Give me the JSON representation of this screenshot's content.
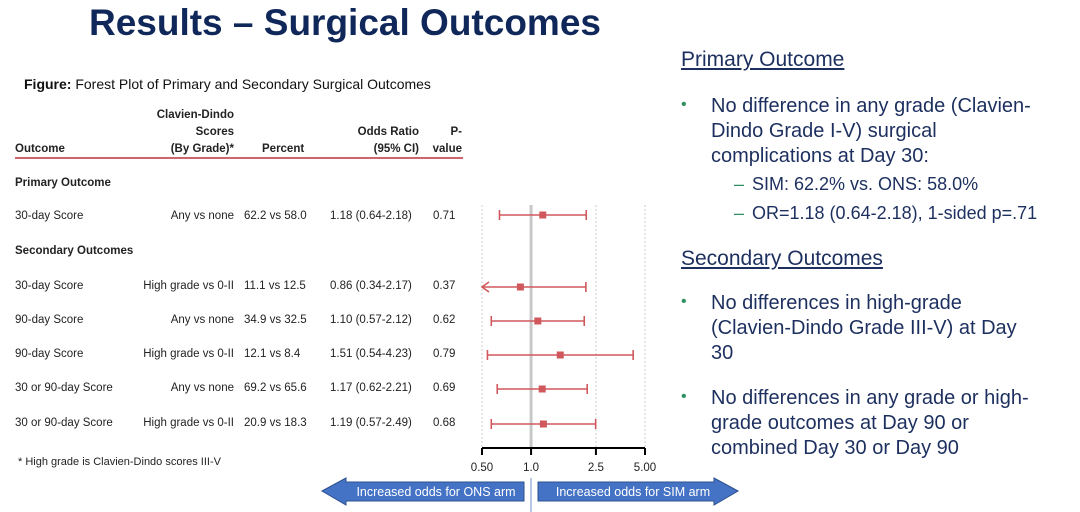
{
  "title": "Results – Surgical Outcomes",
  "caption": {
    "label": "Figure:",
    "text": " Forest Plot of Primary and Secondary Surgical Outcomes"
  },
  "table": {
    "headers": {
      "outcome": "Outcome",
      "score_l1": "Clavien-Dindo",
      "score_l2": "Scores",
      "score_l3": "(By Grade)*",
      "percent": "Percent",
      "or_l1": "Odds Ratio",
      "or_l2": "(95% CI)",
      "p_l1": "P-",
      "p_l2": "value"
    },
    "section_primary": "Primary Outcome",
    "section_secondary": "Secondary Outcomes",
    "rows": [
      {
        "outcome": "30-day Score",
        "score": "Any vs none",
        "percent": "62.2 vs 58.0",
        "or": "1.18 (0.64-2.18)",
        "p": "0.71"
      },
      {
        "outcome": "30-day Score",
        "score": "High grade vs 0-II",
        "percent": "11.1 vs 12.5",
        "or": "0.86 (0.34-2.17)",
        "p": "0.37"
      },
      {
        "outcome": "90-day Score",
        "score": "Any vs none",
        "percent": "34.9 vs 32.5",
        "or": "1.10 (0.57-2.12)",
        "p": "0.62"
      },
      {
        "outcome": "90-day Score",
        "score": "High grade vs 0-II",
        "percent": "12.1 vs 8.4",
        "or": "1.51 (0.54-4.23)",
        "p": "0.79"
      },
      {
        "outcome": "30 or 90-day Score",
        "score": "Any vs none",
        "percent": "69.2 vs 65.6",
        "or": "1.17 (0.62-2.21)",
        "p": "0.69"
      },
      {
        "outcome": "30 or 90-day Score",
        "score": "High grade vs 0-II",
        "percent": "20.9 vs 18.3",
        "or": "1.19 (0.57-2.49)",
        "p": "0.68"
      }
    ],
    "footnote": "* High grade is Clavien-Dindo  scores III-V"
  },
  "chart_data": {
    "type": "forest",
    "x_scale": "log",
    "xlim": [
      0.5,
      5.0
    ],
    "x_ticks": [
      0.5,
      1.0,
      2.5,
      5.0
    ],
    "x_tick_labels": [
      "0.50",
      "1.0",
      "2.5",
      "5.00"
    ],
    "reference_line": 1.0,
    "grid": "dotted vertical at ticks",
    "points": [
      {
        "or": 1.18,
        "lo": 0.64,
        "hi": 2.18
      },
      {
        "or": 0.86,
        "lo": 0.34,
        "hi": 2.17
      },
      {
        "or": 1.1,
        "lo": 0.57,
        "hi": 2.12
      },
      {
        "or": 1.51,
        "lo": 0.54,
        "hi": 4.23
      },
      {
        "or": 1.17,
        "lo": 0.62,
        "hi": 2.21
      },
      {
        "or": 1.19,
        "lo": 0.57,
        "hi": 2.49
      }
    ],
    "marker_color": "#d0585c",
    "arrow_left_label": "Increased odds for ONS arm",
    "arrow_right_label": "Increased odds for SIM arm",
    "arrow_color": "#4472c4"
  },
  "right": {
    "primary_heading": "Primary Outcome",
    "primary_bullet": [
      "No difference in any grade (Clavien-",
      "Dindo Grade I-V) surgical",
      "complications at Day 30:"
    ],
    "primary_sub": [
      "SIM: 62.2% vs. ONS: 58.0%",
      "OR=1.18 (0.64-2.18), 1-sided p=.71"
    ],
    "secondary_heading": "Secondary Outcomes",
    "secondary_bullets": [
      [
        "No differences in high-grade",
        "(Clavien-Dindo Grade III-V) at Day",
        "30"
      ],
      [
        "No differences in any grade or high-",
        "grade outcomes at Day 90 or",
        "combined Day 30 or Day 90"
      ]
    ],
    "bullet_color": "#2e9060",
    "text_color": "#1c2f5e"
  }
}
